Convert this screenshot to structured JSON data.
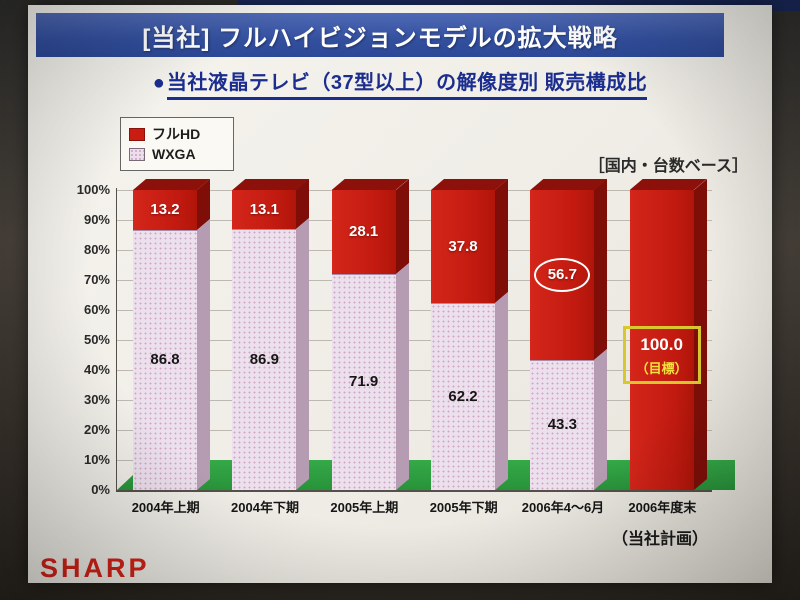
{
  "slide": {
    "title": "[当社] フルハイビジョンモデルの拡大戦略",
    "subtitle_bullet": "●",
    "subtitle": "当社液晶テレビ（37型以上）の解像度別 販売構成比",
    "basis_note": "［国内・台数ベース］",
    "plan_note": "（当社計画）",
    "logo": "SHARP"
  },
  "legend": {
    "items": [
      {
        "label": "フルHD",
        "color": "#c91d12"
      },
      {
        "label": "WXGA",
        "color": "#ecdfec"
      }
    ]
  },
  "colors": {
    "full_hd_front": "#c91d12",
    "full_hd_side": "#7f0e08",
    "wxga_front": "#ece0ec",
    "wxga_side": "#b59cb3",
    "floor_green": "#2e9c40",
    "title_bar_blue": "#33509f",
    "subtitle_blue": "#1b2d8f",
    "target_box_yellow": "#d8c82e",
    "logo_red": "#d42318"
  },
  "chart_data": {
    "type": "bar",
    "stacked": true,
    "title": "当社液晶テレビ（37型以上）の解像度別 販売構成比",
    "categories": [
      "2004年上期",
      "2004年下期",
      "2005年上期",
      "2005年下期",
      "2006年4～6月",
      "2006年度末"
    ],
    "series": [
      {
        "name": "フルHD",
        "color": "#c91d12",
        "values": [
          13.2,
          13.1,
          28.1,
          37.8,
          56.7,
          100.0
        ]
      },
      {
        "name": "WXGA",
        "color": "#ecdfec",
        "values": [
          86.8,
          86.9,
          71.9,
          62.2,
          43.3,
          0.0
        ]
      }
    ],
    "ylim": [
      0,
      100
    ],
    "ytick_step": 10,
    "yticks": [
      "0%",
      "10%",
      "20%",
      "30%",
      "40%",
      "50%",
      "60%",
      "70%",
      "80%",
      "90%",
      "100%"
    ],
    "legend_position": "top-left",
    "grid": true,
    "annotations": {
      "circle_series": "フルHD",
      "circle_index": 4,
      "circle_value": "56.7",
      "target_index": 5,
      "target_value": "100.0",
      "target_label": "（目標）"
    }
  }
}
